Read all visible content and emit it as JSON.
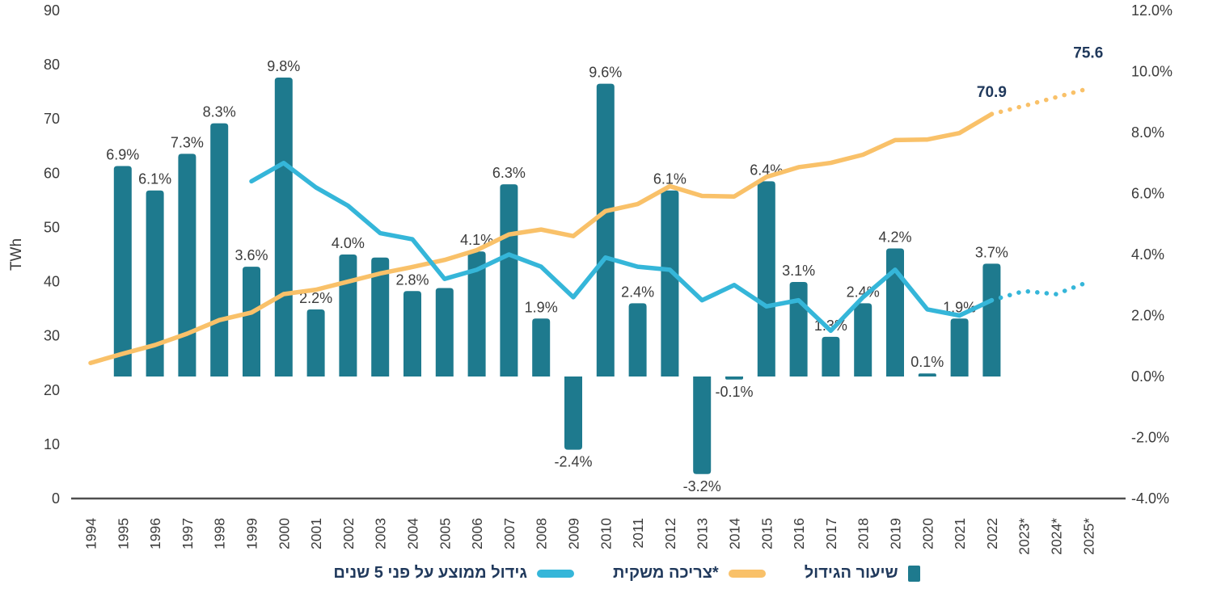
{
  "chart_data": {
    "type": "combo-bar-line",
    "title": "",
    "left_axis": {
      "label": "TWh",
      "range": [
        0,
        90
      ],
      "ticks": [
        90,
        80,
        70,
        60,
        50,
        40,
        30,
        20,
        10,
        0
      ]
    },
    "right_axis": {
      "range": [
        -4,
        12
      ],
      "ticks": [
        {
          "value": 12,
          "label": "12.0%"
        },
        {
          "value": 10,
          "label": "10.0%"
        },
        {
          "value": 8,
          "label": "8.0%"
        },
        {
          "value": 6,
          "label": "6.0%"
        },
        {
          "value": 4,
          "label": "4.0%"
        },
        {
          "value": 2,
          "label": "2.0%"
        },
        {
          "value": 0,
          "label": "0.0%"
        },
        {
          "value": -2,
          "label": "-2.0%"
        },
        {
          "value": -4,
          "label": "-4.0%"
        }
      ]
    },
    "categories": [
      "1994",
      "1995",
      "1996",
      "1997",
      "1998",
      "1999",
      "2000",
      "2001",
      "2002",
      "2003",
      "2004",
      "2005",
      "2006",
      "2007",
      "2008",
      "2009",
      "2010",
      "2011",
      "2012",
      "2013",
      "2014",
      "2015",
      "2016",
      "2017",
      "2018",
      "2019",
      "2020",
      "2021",
      "2022",
      "2023*",
      "2024*",
      "2025*"
    ],
    "grid": false,
    "legend_position": "bottom",
    "series": [
      {
        "id": "growth_rate",
        "name": "שיעור הגידול",
        "type": "bar",
        "axis": "right",
        "color": "#1e7a8e",
        "start": "1995",
        "values": [
          6.9,
          6.1,
          7.3,
          8.3,
          3.6,
          9.8,
          2.2,
          4.0,
          3.9,
          2.8,
          2.9,
          4.1,
          6.3,
          1.9,
          -2.4,
          9.6,
          2.4,
          6.1,
          -3.2,
          -0.1,
          6.4,
          3.1,
          1.3,
          2.4,
          4.2,
          0.1,
          1.9,
          3.7
        ],
        "labels": [
          "6.9%",
          "6.1%",
          "7.3%",
          "8.3%",
          "3.6%",
          "9.8%",
          "2.2%",
          "4.0%",
          null,
          "2.8%",
          null,
          "4.1%",
          "6.3%",
          "1.9%",
          "-2.4%",
          "9.6%",
          "2.4%",
          "6.1%",
          "-3.2%",
          "-0.1%",
          "6.4%",
          "3.1%",
          "1.3%",
          "2.4%",
          "4.2%",
          "0.1%",
          "1.9%",
          "3.7%"
        ]
      },
      {
        "id": "consumption",
        "name": "צריכה משקית*",
        "type": "line",
        "axis": "left",
        "color": "#f9c169",
        "start": "1994",
        "values": [
          25.0,
          26.7,
          28.3,
          30.4,
          32.9,
          34.3,
          37.7,
          38.5,
          40.0,
          41.5,
          42.7,
          44.0,
          45.8,
          48.7,
          49.6,
          48.4,
          53.0,
          54.3,
          57.6,
          55.8,
          55.7,
          59.3,
          61.1,
          61.9,
          63.4,
          66.1,
          66.2,
          67.4,
          70.9
        ],
        "forecast": [
          72.4,
          74.0,
          75.6
        ]
      },
      {
        "id": "avg_growth_5y",
        "name": "גידול ממוצע על פני 5 שנים",
        "type": "line",
        "axis": "right",
        "color": "#35b6d9",
        "start": "1999",
        "values": [
          6.4,
          7.0,
          6.2,
          5.6,
          4.7,
          4.5,
          3.2,
          3.5,
          4.0,
          3.6,
          2.6,
          3.9,
          3.6,
          3.5,
          2.5,
          3.0,
          2.3,
          2.5,
          1.5,
          2.6,
          3.5,
          2.2,
          2.0,
          2.5
        ],
        "forecast": [
          2.8,
          2.7,
          3.1
        ]
      }
    ],
    "annotations": [
      {
        "category": "2022",
        "value": 70.9,
        "text": "70.9"
      },
      {
        "category": "2025*",
        "value": 75.6,
        "text": "75.6"
      }
    ]
  },
  "colors": {
    "bar": "#1e7a8e",
    "consumption_line": "#f9c169",
    "avg_growth_line": "#35b6d9",
    "tick_text": "#3b3b3b",
    "bar_label_text": "#3b3b3b",
    "annotation_text": "#20395c",
    "legend_text": "#20395c",
    "axis_line": "#4f4f4f"
  },
  "legend": {
    "items": [
      {
        "label": "גידול ממוצע על פני 5 שנים",
        "swatch": "line",
        "series_id": "avg_growth_5y"
      },
      {
        "label": "צריכה משקית*",
        "swatch": "line",
        "series_id": "consumption"
      },
      {
        "label": "שיעור הגידול",
        "swatch": "square",
        "series_id": "growth_rate"
      }
    ]
  }
}
